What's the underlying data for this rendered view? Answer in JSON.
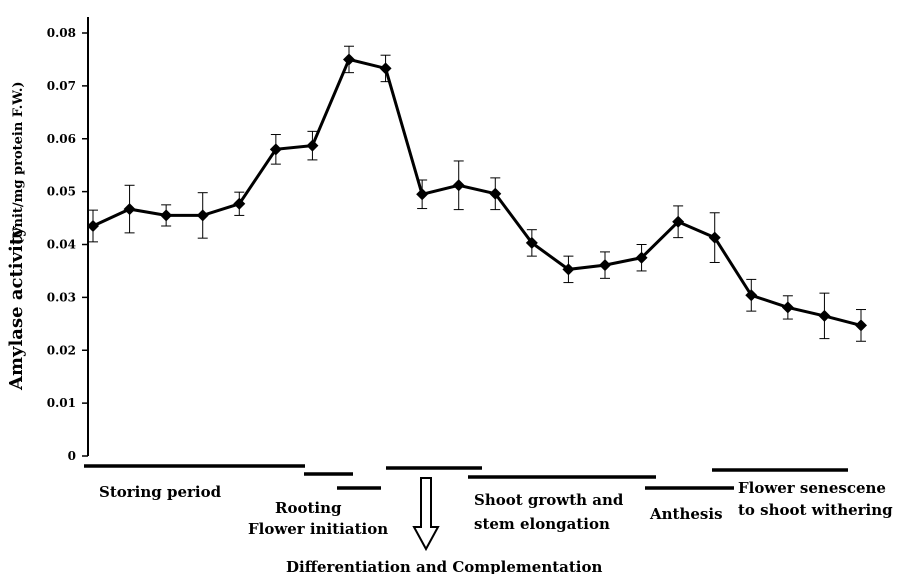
{
  "chart_data": {
    "type": "line",
    "title": "",
    "ylabel": "Amylase activity",
    "ylabel_unit": "(Unit/mg protein F.W.)",
    "ylim": [
      0,
      0.08
    ],
    "yticks": [
      "0",
      "0.01",
      "0.02",
      "0.03",
      "0.04",
      "0.05",
      "0.06",
      "0.07",
      "0.08"
    ],
    "grid": false,
    "series": [
      {
        "values": [
          0.0435,
          0.0467,
          0.0455,
          0.0455,
          0.0477,
          0.058,
          0.0587,
          0.075,
          0.0733,
          0.0495,
          0.0512,
          0.0496,
          0.0403,
          0.0353,
          0.0361,
          0.0375,
          0.0443,
          0.0413,
          0.0304,
          0.0281,
          0.0265,
          0.0247
        ],
        "errors": [
          0.003,
          0.0045,
          0.002,
          0.0043,
          0.0022,
          0.0028,
          0.0027,
          0.0025,
          0.0025,
          0.0027,
          0.0046,
          0.003,
          0.0025,
          0.0025,
          0.0025,
          0.0025,
          0.003,
          0.0047,
          0.003,
          0.0022,
          0.0043,
          0.003
        ],
        "color": "#000000"
      }
    ],
    "phases": [
      {
        "label": "Storing period"
      },
      {
        "label": "Rooting"
      },
      {
        "label": "Flower initiation"
      },
      {
        "label": "Differentiation and Complementation"
      },
      {
        "label": "Shoot growth and"
      },
      {
        "label": "stem elongation"
      },
      {
        "label": "Anthesis"
      },
      {
        "label": "Flower senescene"
      },
      {
        "label": "to shoot withering"
      }
    ]
  }
}
